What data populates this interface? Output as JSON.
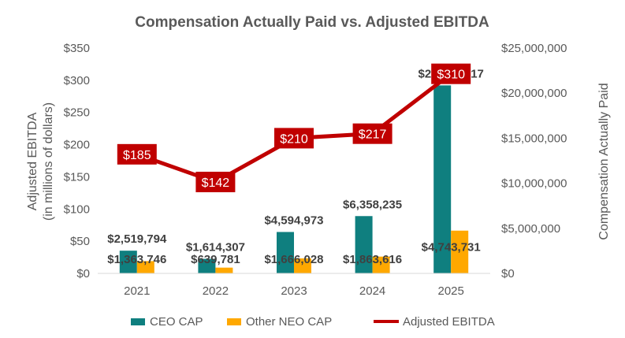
{
  "chart_data": {
    "type": "bar",
    "title": "Compensation Actually Paid vs. Adjusted EBITDA",
    "categories": [
      "2021",
      "2022",
      "2023",
      "2024",
      "2025"
    ],
    "y_left": {
      "label_line1": "Adjusted EBITDA",
      "label_line2": "(in millions of dollars)",
      "ylim": [
        0,
        350
      ],
      "ticks": [
        0,
        50,
        100,
        150,
        200,
        250,
        300,
        350
      ],
      "tick_labels": [
        "$0",
        "$50",
        "$100",
        "$150",
        "$200",
        "$250",
        "$300",
        "$350"
      ]
    },
    "y_right": {
      "label": "Compensation Actually Paid",
      "ylim": [
        0,
        25000000
      ],
      "ticks": [
        0,
        5000000,
        10000000,
        15000000,
        20000000,
        25000000
      ],
      "tick_labels": [
        "$0",
        "$5,000,000",
        "$10,000,000",
        "$15,000,000",
        "$20,000,000",
        "$25,000,000"
      ]
    },
    "series": [
      {
        "name": "CEO CAP",
        "type": "bar",
        "axis": "right",
        "color": "#0f7f7f",
        "values": [
          2519794,
          1614307,
          4594973,
          6358235,
          20858017
        ],
        "labels": [
          "$2,519,794",
          "$1,614,307",
          "$4,594,973",
          "$6,358,235",
          "$20,858,017"
        ]
      },
      {
        "name": "Other NEO CAP",
        "type": "bar",
        "axis": "right",
        "color": "#ffa800",
        "values": [
          1363746,
          639781,
          1666028,
          1863616,
          4743731
        ],
        "labels": [
          "$1,363,746",
          "$639,781",
          "$1,666,028",
          "$1,863,616",
          "$4,743,731"
        ]
      },
      {
        "name": "Adjusted EBITDA",
        "type": "line",
        "axis": "left",
        "color": "#c00000",
        "values": [
          185,
          142,
          210,
          217,
          310
        ],
        "labels": [
          "$185",
          "$142",
          "$210",
          "$217",
          "$310"
        ]
      }
    ],
    "legend_position": "bottom",
    "grid": false
  }
}
